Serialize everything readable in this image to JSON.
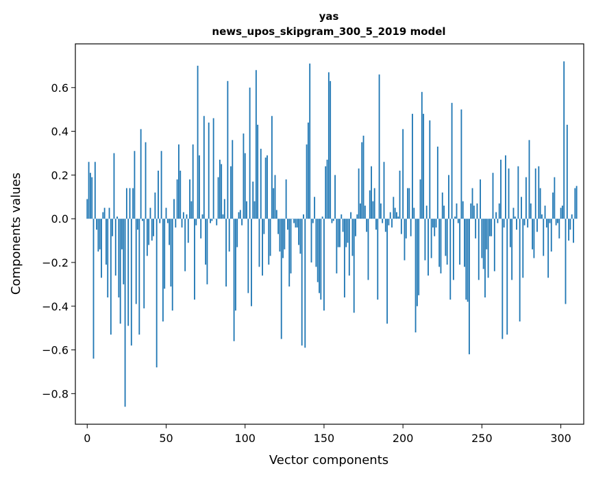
{
  "chart_data": {
    "type": "bar",
    "title": "yas",
    "subtitle": "news_upos_skipgram_300_5_2019 model",
    "xlabel": "Vector components",
    "ylabel": "Components values",
    "xlim": [
      -7.5,
      314.5
    ],
    "ylim": [
      -0.94,
      0.8
    ],
    "xticks": [
      0,
      50,
      100,
      150,
      200,
      250,
      300
    ],
    "yticks": [
      -0.8,
      -0.6,
      -0.4,
      -0.2,
      0.0,
      0.2,
      0.4,
      0.6
    ],
    "ytick_labels": [
      "−0.8",
      "−0.6",
      "−0.4",
      "−0.2",
      "0.0",
      "0.2",
      "0.4",
      "0.6"
    ],
    "grid": false,
    "bar_color": "#1f77b4",
    "values": [
      0.09,
      0.26,
      0.21,
      0.19,
      -0.64,
      0.26,
      -0.05,
      -0.15,
      -0.14,
      -0.27,
      0.03,
      0.05,
      -0.21,
      -0.36,
      0.05,
      -0.53,
      -0.08,
      0.3,
      -0.26,
      0.01,
      -0.36,
      -0.48,
      -0.14,
      -0.3,
      -0.86,
      0.14,
      -0.49,
      0.14,
      -0.58,
      0.14,
      0.31,
      -0.39,
      -0.05,
      -0.53,
      0.41,
      -0.01,
      -0.41,
      0.35,
      -0.17,
      -0.12,
      0.05,
      -0.1,
      -0.08,
      0.12,
      -0.68,
      0.22,
      -0.02,
      0.31,
      -0.47,
      -0.32,
      0.05,
      -0.02,
      -0.12,
      -0.31,
      -0.42,
      0.09,
      -0.04,
      0.18,
      0.34,
      0.22,
      -0.04,
      0.03,
      -0.24,
      0.02,
      -0.11,
      0.18,
      0.08,
      0.34,
      -0.37,
      -0.03,
      0.7,
      0.29,
      -0.09,
      0.02,
      0.47,
      -0.21,
      -0.3,
      0.44,
      -0.02,
      -0.01,
      0.46,
      0.0,
      -0.03,
      0.19,
      0.27,
      0.25,
      0.02,
      0.09,
      -0.31,
      0.63,
      -0.15,
      0.24,
      0.36,
      -0.56,
      -0.42,
      -0.13,
      0.03,
      0.04,
      -0.03,
      0.39,
      0.3,
      0.08,
      -0.34,
      0.6,
      -0.4,
      0.17,
      0.08,
      0.68,
      0.43,
      -0.22,
      0.32,
      -0.26,
      -0.07,
      0.28,
      0.29,
      -0.21,
      -0.17,
      0.47,
      0.14,
      0.2,
      0.04,
      -0.07,
      -0.15,
      -0.55,
      -0.18,
      -0.14,
      0.18,
      -0.05,
      -0.31,
      -0.25,
      0.0,
      -0.02,
      -0.04,
      -0.04,
      -0.12,
      -0.16,
      -0.58,
      0.02,
      -0.59,
      0.34,
      0.44,
      0.71,
      -0.2,
      -0.02,
      0.1,
      -0.22,
      -0.29,
      -0.34,
      -0.37,
      0.01,
      -0.42,
      0.24,
      0.27,
      0.67,
      0.63,
      -0.02,
      -0.01,
      0.2,
      -0.25,
      -0.13,
      -0.13,
      0.02,
      -0.06,
      -0.36,
      -0.13,
      -0.11,
      -0.26,
      0.03,
      -0.17,
      -0.43,
      -0.08,
      0.02,
      0.23,
      0.07,
      0.35,
      0.38,
      0.06,
      -0.06,
      -0.28,
      0.13,
      0.24,
      0.08,
      0.14,
      -0.05,
      -0.37,
      0.66,
      0.07,
      -0.02,
      0.26,
      -0.06,
      -0.48,
      -0.03,
      0.03,
      -0.04,
      0.1,
      0.05,
      0.03,
      0.01,
      0.22,
      -0.07,
      0.41,
      -0.19,
      -0.09,
      0.14,
      0.14,
      -0.08,
      0.48,
      0.05,
      -0.52,
      -0.4,
      -0.35,
      0.18,
      0.58,
      0.48,
      -0.19,
      0.06,
      -0.26,
      0.45,
      -0.18,
      -0.04,
      -0.08,
      -0.04,
      0.33,
      -0.22,
      -0.25,
      0.12,
      0.06,
      -0.17,
      -0.21,
      0.2,
      -0.37,
      0.53,
      -0.28,
      0.01,
      0.07,
      -0.02,
      -0.21,
      0.5,
      0.08,
      -0.22,
      -0.37,
      -0.38,
      -0.62,
      0.07,
      0.14,
      0.06,
      -0.09,
      0.07,
      -0.28,
      0.18,
      -0.18,
      -0.23,
      -0.36,
      -0.14,
      -0.27,
      -0.08,
      -0.08,
      0.21,
      -0.24,
      0.03,
      -0.02,
      0.07,
      0.27,
      -0.55,
      -0.04,
      0.29,
      -0.53,
      0.23,
      -0.13,
      -0.28,
      0.05,
      0.01,
      -0.05,
      0.24,
      -0.47,
      0.1,
      -0.27,
      -0.03,
      0.19,
      -0.04,
      0.36,
      0.07,
      -0.14,
      -0.18,
      0.23,
      -0.06,
      0.24,
      0.14,
      0.02,
      -0.17,
      0.06,
      -0.04,
      -0.27,
      -0.02,
      -0.15,
      0.12,
      0.19,
      -0.03,
      -0.02,
      -0.09,
      0.05,
      0.06,
      0.72,
      -0.39,
      0.43,
      -0.1,
      -0.05,
      0.02,
      -0.11,
      0.14,
      0.15
    ]
  }
}
